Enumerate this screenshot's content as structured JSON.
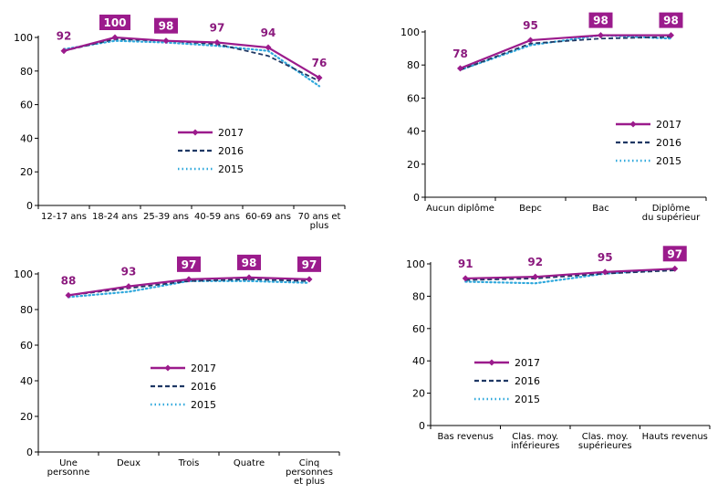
{
  "colors": {
    "s2017": "#9b1b8c",
    "s2016": "#1f3864",
    "s2015": "#2fa8dc",
    "axis": "#000000"
  },
  "chart_data": [
    {
      "type": "line",
      "categories": [
        "12-17 ans",
        "18-24 ans",
        "25-39 ans",
        "40-59 ans",
        "60-69 ans",
        "70 ans et plus"
      ],
      "ylim": [
        0,
        100
      ],
      "yticks": [
        0,
        20,
        40,
        60,
        80,
        100
      ],
      "grid": false,
      "legend": "center",
      "series": [
        {
          "name": "2017",
          "values": [
            92,
            100,
            98,
            97,
            94,
            76
          ]
        },
        {
          "name": "2016",
          "values": [
            92,
            99,
            98,
            96,
            89,
            74
          ]
        },
        {
          "name": "2015",
          "values": [
            93,
            98,
            97,
            95,
            92,
            71
          ]
        }
      ],
      "data_labels": [
        "92",
        "100",
        "98",
        "97",
        "94",
        "76"
      ],
      "boxed_labels": [
        false,
        true,
        true,
        false,
        false,
        false
      ]
    },
    {
      "type": "line",
      "categories": [
        "Aucun diplôme",
        "Bepc",
        "Bac",
        "Diplôme du supérieur"
      ],
      "ylim": [
        0,
        100
      ],
      "yticks": [
        0,
        20,
        40,
        60,
        80,
        100
      ],
      "grid": false,
      "legend": "right",
      "series": [
        {
          "name": "2017",
          "values": [
            78,
            95,
            98,
            98
          ]
        },
        {
          "name": "2016",
          "values": [
            77,
            93,
            96,
            97
          ]
        },
        {
          "name": "2015",
          "values": [
            77,
            92,
            98,
            96
          ]
        }
      ],
      "data_labels": [
        "78",
        "95",
        "98",
        "98"
      ],
      "boxed_labels": [
        false,
        false,
        true,
        true
      ]
    },
    {
      "type": "line",
      "categories": [
        "Une personne",
        "Deux",
        "Trois",
        "Quatre",
        "Cinq personnes et plus"
      ],
      "ylim": [
        0,
        100
      ],
      "yticks": [
        0,
        20,
        40,
        60,
        80,
        100
      ],
      "grid": false,
      "legend": "center",
      "series": [
        {
          "name": "2017",
          "values": [
            88,
            93,
            97,
            98,
            97
          ]
        },
        {
          "name": "2016",
          "values": [
            88,
            92,
            96,
            97,
            96
          ]
        },
        {
          "name": "2015",
          "values": [
            87,
            90,
            96,
            96,
            95
          ]
        }
      ],
      "data_labels": [
        "88",
        "93",
        "97",
        "98",
        "97"
      ],
      "boxed_labels": [
        false,
        false,
        true,
        true,
        true
      ]
    },
    {
      "type": "line",
      "categories": [
        "Bas revenus",
        "Clas. moy. inférieures",
        "Clas. moy. supérieures",
        "Hauts revenus"
      ],
      "ylim": [
        0,
        100
      ],
      "yticks": [
        0,
        20,
        40,
        60,
        80,
        100
      ],
      "grid": false,
      "legend": "left",
      "series": [
        {
          "name": "2017",
          "values": [
            91,
            92,
            95,
            97
          ]
        },
        {
          "name": "2016",
          "values": [
            90,
            91,
            94,
            96
          ]
        },
        {
          "name": "2015",
          "values": [
            89,
            88,
            94,
            97
          ]
        }
      ],
      "data_labels": [
        "91",
        "92",
        "95",
        "97"
      ],
      "boxed_labels": [
        false,
        false,
        false,
        true
      ]
    }
  ]
}
